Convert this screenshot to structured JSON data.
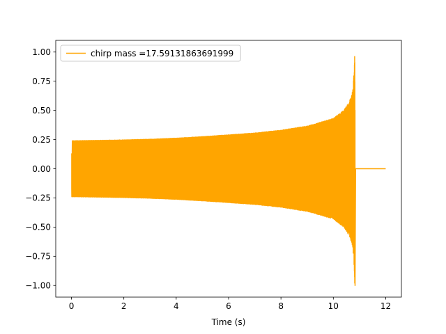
{
  "chart_data": {
    "type": "line",
    "title": "",
    "xlabel": "Time (s)",
    "ylabel": "",
    "xlim": [
      -0.6,
      12.6
    ],
    "ylim": [
      -1.1,
      1.1
    ],
    "grid": false,
    "legend_placement": "upper-left",
    "x_ticks": [
      0,
      2,
      4,
      6,
      8,
      10,
      12
    ],
    "y_ticks": [
      -1.0,
      -0.75,
      -0.5,
      -0.25,
      0.0,
      0.25,
      0.5,
      0.75,
      1.0
    ],
    "x_tick_labels": [
      "0",
      "2",
      "4",
      "6",
      "8",
      "10",
      "12"
    ],
    "y_tick_labels": [
      "−1.00",
      "−0.75",
      "−0.50",
      "−0.25",
      "0.00",
      "0.25",
      "0.50",
      "0.75",
      "1.00"
    ],
    "series": [
      {
        "name": "chirp mass =17.59131863691999",
        "color": "#ffa500",
        "envelope": {
          "t": [
            0.0,
            1.0,
            2.0,
            3.0,
            4.0,
            5.0,
            6.0,
            7.0,
            8.0,
            9.0,
            10.0,
            10.4,
            10.6,
            10.7,
            10.75,
            10.8,
            10.82,
            10.85
          ],
          "amplitude": [
            0.24,
            0.243,
            0.247,
            0.253,
            0.262,
            0.275,
            0.29,
            0.306,
            0.33,
            0.365,
            0.43,
            0.5,
            0.57,
            0.63,
            0.68,
            0.85,
            1.0,
            0.0
          ]
        },
        "start_value": 0.13,
        "merger_time": 10.85,
        "end_time": 12.0,
        "tail_value": 0.0
      }
    ]
  }
}
